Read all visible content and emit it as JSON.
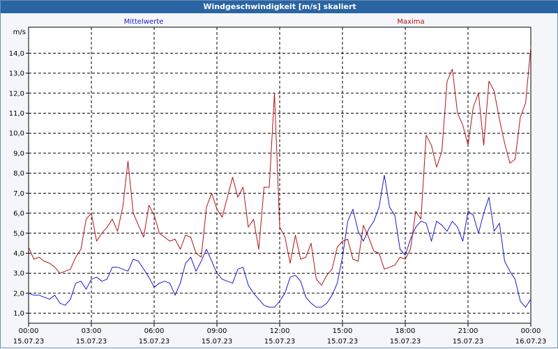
{
  "window": {
    "title": "Windgeschwindigkeit [m/s] skaliert"
  },
  "colors": {
    "titlebar": "#2a64a3",
    "mean": "#1a1acc",
    "max": "#b01414",
    "grid": "#000000"
  },
  "chart_data": {
    "type": "line",
    "title": "Windgeschwindigkeit [m/s] skaliert",
    "ylabel": "m/s",
    "xlabel": "",
    "ylim": [
      0.5,
      15.3
    ],
    "xlim": [
      0,
      24
    ],
    "grid": true,
    "y_ticks": [
      "1,0",
      "2,0",
      "3,0",
      "4,0",
      "5,0",
      "6,0",
      "7,0",
      "8,0",
      "9,0",
      "10,0",
      "11,0",
      "12,0",
      "13,0",
      "14,0"
    ],
    "x_ticks": [
      {
        "time": "00:00",
        "date": "15.07.23"
      },
      {
        "time": "03:00",
        "date": "15.07.23"
      },
      {
        "time": "06:00",
        "date": "15.07.23"
      },
      {
        "time": "09:00",
        "date": "15.07.23"
      },
      {
        "time": "12:00",
        "date": "15.07.23"
      },
      {
        "time": "15:00",
        "date": "15.07.23"
      },
      {
        "time": "18:00",
        "date": "15.07.23"
      },
      {
        "time": "21:00",
        "date": "15.07.23"
      },
      {
        "time": "00:00",
        "date": "16.07.23"
      }
    ],
    "series": [
      {
        "name": "Mittelwerte",
        "color": "#1a1acc",
        "points": [
          [
            0,
            2.0
          ],
          [
            0.25,
            1.9
          ],
          [
            0.5,
            1.9
          ],
          [
            0.75,
            1.8
          ],
          [
            1.0,
            1.7
          ],
          [
            1.25,
            1.9
          ],
          [
            1.5,
            1.5
          ],
          [
            1.75,
            1.4
          ],
          [
            2.0,
            1.7
          ],
          [
            2.25,
            2.5
          ],
          [
            2.5,
            2.6
          ],
          [
            2.75,
            2.2
          ],
          [
            3.0,
            2.7
          ],
          [
            3.25,
            2.8
          ],
          [
            3.5,
            2.6
          ],
          [
            3.75,
            2.7
          ],
          [
            4.0,
            3.3
          ],
          [
            4.25,
            3.3
          ],
          [
            4.5,
            3.2
          ],
          [
            4.75,
            3.1
          ],
          [
            5.0,
            3.7
          ],
          [
            5.25,
            3.6
          ],
          [
            5.5,
            3.2
          ],
          [
            5.75,
            2.8
          ],
          [
            6.0,
            2.3
          ],
          [
            6.25,
            2.5
          ],
          [
            6.5,
            2.6
          ],
          [
            6.75,
            2.5
          ],
          [
            7.0,
            1.9
          ],
          [
            7.25,
            2.5
          ],
          [
            7.5,
            3.5
          ],
          [
            7.75,
            3.8
          ],
          [
            8.0,
            3.1
          ],
          [
            8.25,
            3.6
          ],
          [
            8.5,
            4.2
          ],
          [
            8.75,
            3.6
          ],
          [
            9.0,
            3.0
          ],
          [
            9.25,
            2.7
          ],
          [
            9.5,
            2.6
          ],
          [
            9.75,
            2.5
          ],
          [
            10.0,
            3.2
          ],
          [
            10.25,
            3.3
          ],
          [
            10.5,
            2.4
          ],
          [
            10.75,
            2.0
          ],
          [
            11.0,
            1.7
          ],
          [
            11.25,
            1.4
          ],
          [
            11.5,
            1.3
          ],
          [
            11.75,
            1.3
          ],
          [
            12.0,
            1.6
          ],
          [
            12.25,
            2.0
          ],
          [
            12.5,
            2.8
          ],
          [
            12.75,
            2.9
          ],
          [
            13.0,
            2.6
          ],
          [
            13.25,
            1.8
          ],
          [
            13.5,
            1.5
          ],
          [
            13.75,
            1.3
          ],
          [
            14.0,
            1.3
          ],
          [
            14.25,
            1.5
          ],
          [
            14.5,
            1.9
          ],
          [
            14.75,
            2.5
          ],
          [
            15.0,
            3.8
          ],
          [
            15.25,
            5.6
          ],
          [
            15.5,
            6.2
          ],
          [
            15.75,
            5.1
          ],
          [
            16.0,
            4.6
          ],
          [
            16.25,
            5.2
          ],
          [
            16.5,
            5.6
          ],
          [
            16.75,
            6.3
          ],
          [
            17.0,
            7.9
          ],
          [
            17.25,
            6.3
          ],
          [
            17.5,
            5.9
          ],
          [
            17.75,
            4.2
          ],
          [
            18.0,
            3.9
          ],
          [
            18.25,
            4.7
          ],
          [
            18.5,
            5.3
          ],
          [
            18.75,
            5.6
          ],
          [
            19.0,
            5.5
          ],
          [
            19.25,
            4.6
          ],
          [
            19.5,
            5.6
          ],
          [
            19.75,
            5.4
          ],
          [
            20.0,
            5.1
          ],
          [
            20.25,
            5.6
          ],
          [
            20.5,
            5.3
          ],
          [
            20.75,
            4.6
          ],
          [
            21.0,
            6.1
          ],
          [
            21.25,
            5.9
          ],
          [
            21.5,
            5.0
          ],
          [
            21.75,
            6.0
          ],
          [
            22.0,
            6.8
          ],
          [
            22.25,
            5.1
          ],
          [
            22.5,
            5.5
          ],
          [
            22.75,
            3.6
          ],
          [
            23.0,
            3.1
          ],
          [
            23.25,
            2.7
          ],
          [
            23.5,
            1.6
          ],
          [
            23.75,
            1.3
          ],
          [
            24.0,
            1.7
          ]
        ]
      },
      {
        "name": "Maxima",
        "color": "#b01414",
        "points": [
          [
            0,
            4.3
          ],
          [
            0.25,
            3.7
          ],
          [
            0.5,
            3.8
          ],
          [
            0.75,
            3.6
          ],
          [
            1.0,
            3.5
          ],
          [
            1.25,
            3.3
          ],
          [
            1.5,
            3.0
          ],
          [
            1.75,
            3.1
          ],
          [
            2.0,
            3.2
          ],
          [
            2.25,
            3.8
          ],
          [
            2.5,
            4.2
          ],
          [
            2.75,
            5.7
          ],
          [
            3.0,
            6.0
          ],
          [
            3.25,
            4.6
          ],
          [
            3.5,
            5.0
          ],
          [
            3.75,
            5.3
          ],
          [
            4.0,
            5.7
          ],
          [
            4.25,
            5.1
          ],
          [
            4.5,
            6.3
          ],
          [
            4.75,
            8.6
          ],
          [
            5.0,
            6.0
          ],
          [
            5.25,
            5.4
          ],
          [
            5.5,
            4.8
          ],
          [
            5.75,
            6.4
          ],
          [
            6.0,
            5.9
          ],
          [
            6.25,
            5.0
          ],
          [
            6.5,
            4.8
          ],
          [
            6.75,
            4.6
          ],
          [
            7.0,
            4.7
          ],
          [
            7.25,
            4.2
          ],
          [
            7.5,
            4.9
          ],
          [
            7.75,
            4.8
          ],
          [
            8.0,
            4.0
          ],
          [
            8.25,
            3.8
          ],
          [
            8.5,
            6.3
          ],
          [
            8.75,
            7.0
          ],
          [
            9.0,
            6.2
          ],
          [
            9.25,
            5.8
          ],
          [
            9.5,
            6.8
          ],
          [
            9.75,
            7.8
          ],
          [
            10.0,
            6.8
          ],
          [
            10.25,
            7.3
          ],
          [
            10.5,
            5.3
          ],
          [
            10.75,
            5.7
          ],
          [
            11.0,
            4.2
          ],
          [
            11.25,
            7.3
          ],
          [
            11.5,
            7.3
          ],
          [
            11.75,
            12.0
          ],
          [
            12.0,
            5.3
          ],
          [
            12.25,
            4.8
          ],
          [
            12.5,
            3.5
          ],
          [
            12.75,
            4.9
          ],
          [
            13.0,
            3.7
          ],
          [
            13.25,
            3.8
          ],
          [
            13.5,
            4.5
          ],
          [
            13.75,
            2.7
          ],
          [
            14.0,
            2.4
          ],
          [
            14.25,
            2.9
          ],
          [
            14.5,
            3.2
          ],
          [
            14.75,
            4.3
          ],
          [
            15.0,
            4.6
          ],
          [
            15.25,
            4.7
          ],
          [
            15.5,
            3.7
          ],
          [
            15.75,
            3.6
          ],
          [
            16.0,
            5.4
          ],
          [
            16.25,
            4.8
          ],
          [
            16.5,
            4.1
          ],
          [
            16.75,
            4.0
          ],
          [
            17.0,
            3.2
          ],
          [
            17.25,
            3.3
          ],
          [
            17.5,
            3.4
          ],
          [
            17.75,
            3.8
          ],
          [
            18.0,
            3.7
          ],
          [
            18.25,
            4.2
          ],
          [
            18.5,
            6.1
          ],
          [
            18.75,
            5.7
          ],
          [
            19.0,
            9.9
          ],
          [
            19.25,
            9.4
          ],
          [
            19.5,
            8.3
          ],
          [
            19.75,
            9.1
          ],
          [
            20.0,
            12.6
          ],
          [
            20.25,
            13.2
          ],
          [
            20.5,
            11.0
          ],
          [
            20.75,
            10.4
          ],
          [
            21.0,
            9.4
          ],
          [
            21.25,
            11.3
          ],
          [
            21.5,
            12.0
          ],
          [
            21.75,
            9.4
          ],
          [
            22.0,
            12.6
          ],
          [
            22.25,
            12.1
          ],
          [
            22.5,
            10.7
          ],
          [
            22.75,
            9.5
          ],
          [
            23.0,
            8.5
          ],
          [
            23.25,
            8.7
          ],
          [
            23.5,
            10.8
          ],
          [
            23.75,
            11.5
          ],
          [
            24.0,
            14.3
          ]
        ]
      }
    ]
  }
}
